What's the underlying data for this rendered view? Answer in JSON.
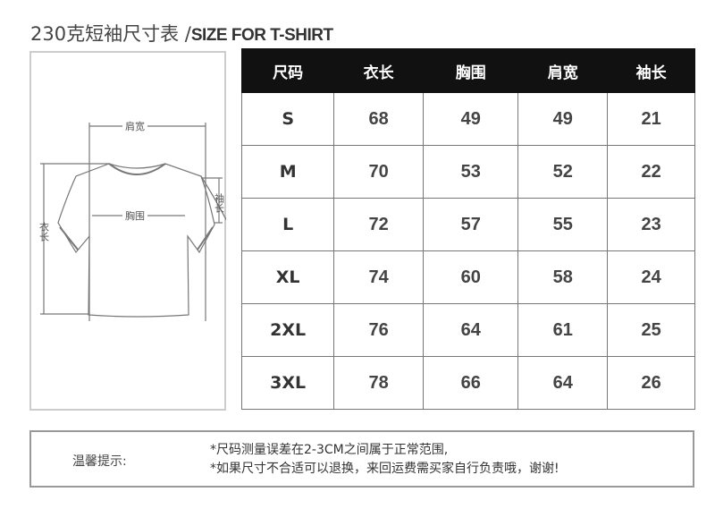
{
  "title": {
    "cn": "230克短袖尺寸表 /",
    "en": "SIZE FOR T-SHIRT"
  },
  "diagram": {
    "shoulder": "肩宽",
    "chest": "胸围",
    "sleeve": "袖长",
    "length": "衣长"
  },
  "table": {
    "headers": [
      "尺码",
      "衣长",
      "胸围",
      "肩宽",
      "袖长"
    ],
    "rows": [
      [
        "S",
        "68",
        "49",
        "49",
        "21"
      ],
      [
        "M",
        "70",
        "53",
        "52",
        "22"
      ],
      [
        "L",
        "72",
        "57",
        "55",
        "23"
      ],
      [
        "XL",
        "74",
        "60",
        "58",
        "24"
      ],
      [
        "2XL",
        "76",
        "64",
        "61",
        "25"
      ],
      [
        "3XL",
        "78",
        "66",
        "64",
        "26"
      ]
    ]
  },
  "note": {
    "label": "温馨提示:",
    "lines": [
      "*尺码测量误差在2-3CM之间属于正常范围,",
      "*如果尺寸不合适可以退换，来回运费需买家自行负责哦，谢谢!"
    ]
  }
}
